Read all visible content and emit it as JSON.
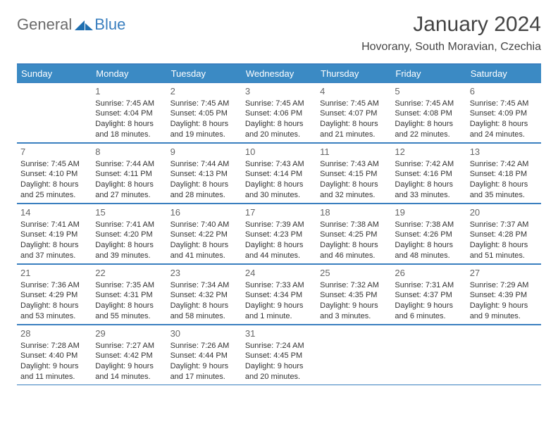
{
  "logo": {
    "text1": "General",
    "text2": "Blue"
  },
  "title": "January 2024",
  "location": "Hovorany, South Moravian, Czechia",
  "colors": {
    "header_bg": "#3b8ac4",
    "header_text": "#ffffff",
    "border": "#3a7fbf",
    "logo_blue": "#3a7fbf",
    "logo_grey": "#6b6b6b",
    "body_text": "#333333"
  },
  "dayHeaders": [
    "Sunday",
    "Monday",
    "Tuesday",
    "Wednesday",
    "Thursday",
    "Friday",
    "Saturday"
  ],
  "weeks": [
    [
      {
        "blank": true
      },
      {
        "day": "1",
        "sunrise": "Sunrise: 7:45 AM",
        "sunset": "Sunset: 4:04 PM",
        "daylight1": "Daylight: 8 hours",
        "daylight2": "and 18 minutes."
      },
      {
        "day": "2",
        "sunrise": "Sunrise: 7:45 AM",
        "sunset": "Sunset: 4:05 PM",
        "daylight1": "Daylight: 8 hours",
        "daylight2": "and 19 minutes."
      },
      {
        "day": "3",
        "sunrise": "Sunrise: 7:45 AM",
        "sunset": "Sunset: 4:06 PM",
        "daylight1": "Daylight: 8 hours",
        "daylight2": "and 20 minutes."
      },
      {
        "day": "4",
        "sunrise": "Sunrise: 7:45 AM",
        "sunset": "Sunset: 4:07 PM",
        "daylight1": "Daylight: 8 hours",
        "daylight2": "and 21 minutes."
      },
      {
        "day": "5",
        "sunrise": "Sunrise: 7:45 AM",
        "sunset": "Sunset: 4:08 PM",
        "daylight1": "Daylight: 8 hours",
        "daylight2": "and 22 minutes."
      },
      {
        "day": "6",
        "sunrise": "Sunrise: 7:45 AM",
        "sunset": "Sunset: 4:09 PM",
        "daylight1": "Daylight: 8 hours",
        "daylight2": "and 24 minutes."
      }
    ],
    [
      {
        "day": "7",
        "sunrise": "Sunrise: 7:45 AM",
        "sunset": "Sunset: 4:10 PM",
        "daylight1": "Daylight: 8 hours",
        "daylight2": "and 25 minutes."
      },
      {
        "day": "8",
        "sunrise": "Sunrise: 7:44 AM",
        "sunset": "Sunset: 4:11 PM",
        "daylight1": "Daylight: 8 hours",
        "daylight2": "and 27 minutes."
      },
      {
        "day": "9",
        "sunrise": "Sunrise: 7:44 AM",
        "sunset": "Sunset: 4:13 PM",
        "daylight1": "Daylight: 8 hours",
        "daylight2": "and 28 minutes."
      },
      {
        "day": "10",
        "sunrise": "Sunrise: 7:43 AM",
        "sunset": "Sunset: 4:14 PM",
        "daylight1": "Daylight: 8 hours",
        "daylight2": "and 30 minutes."
      },
      {
        "day": "11",
        "sunrise": "Sunrise: 7:43 AM",
        "sunset": "Sunset: 4:15 PM",
        "daylight1": "Daylight: 8 hours",
        "daylight2": "and 32 minutes."
      },
      {
        "day": "12",
        "sunrise": "Sunrise: 7:42 AM",
        "sunset": "Sunset: 4:16 PM",
        "daylight1": "Daylight: 8 hours",
        "daylight2": "and 33 minutes."
      },
      {
        "day": "13",
        "sunrise": "Sunrise: 7:42 AM",
        "sunset": "Sunset: 4:18 PM",
        "daylight1": "Daylight: 8 hours",
        "daylight2": "and 35 minutes."
      }
    ],
    [
      {
        "day": "14",
        "sunrise": "Sunrise: 7:41 AM",
        "sunset": "Sunset: 4:19 PM",
        "daylight1": "Daylight: 8 hours",
        "daylight2": "and 37 minutes."
      },
      {
        "day": "15",
        "sunrise": "Sunrise: 7:41 AM",
        "sunset": "Sunset: 4:20 PM",
        "daylight1": "Daylight: 8 hours",
        "daylight2": "and 39 minutes."
      },
      {
        "day": "16",
        "sunrise": "Sunrise: 7:40 AM",
        "sunset": "Sunset: 4:22 PM",
        "daylight1": "Daylight: 8 hours",
        "daylight2": "and 41 minutes."
      },
      {
        "day": "17",
        "sunrise": "Sunrise: 7:39 AM",
        "sunset": "Sunset: 4:23 PM",
        "daylight1": "Daylight: 8 hours",
        "daylight2": "and 44 minutes."
      },
      {
        "day": "18",
        "sunrise": "Sunrise: 7:38 AM",
        "sunset": "Sunset: 4:25 PM",
        "daylight1": "Daylight: 8 hours",
        "daylight2": "and 46 minutes."
      },
      {
        "day": "19",
        "sunrise": "Sunrise: 7:38 AM",
        "sunset": "Sunset: 4:26 PM",
        "daylight1": "Daylight: 8 hours",
        "daylight2": "and 48 minutes."
      },
      {
        "day": "20",
        "sunrise": "Sunrise: 7:37 AM",
        "sunset": "Sunset: 4:28 PM",
        "daylight1": "Daylight: 8 hours",
        "daylight2": "and 51 minutes."
      }
    ],
    [
      {
        "day": "21",
        "sunrise": "Sunrise: 7:36 AM",
        "sunset": "Sunset: 4:29 PM",
        "daylight1": "Daylight: 8 hours",
        "daylight2": "and 53 minutes."
      },
      {
        "day": "22",
        "sunrise": "Sunrise: 7:35 AM",
        "sunset": "Sunset: 4:31 PM",
        "daylight1": "Daylight: 8 hours",
        "daylight2": "and 55 minutes."
      },
      {
        "day": "23",
        "sunrise": "Sunrise: 7:34 AM",
        "sunset": "Sunset: 4:32 PM",
        "daylight1": "Daylight: 8 hours",
        "daylight2": "and 58 minutes."
      },
      {
        "day": "24",
        "sunrise": "Sunrise: 7:33 AM",
        "sunset": "Sunset: 4:34 PM",
        "daylight1": "Daylight: 9 hours",
        "daylight2": "and 1 minute."
      },
      {
        "day": "25",
        "sunrise": "Sunrise: 7:32 AM",
        "sunset": "Sunset: 4:35 PM",
        "daylight1": "Daylight: 9 hours",
        "daylight2": "and 3 minutes."
      },
      {
        "day": "26",
        "sunrise": "Sunrise: 7:31 AM",
        "sunset": "Sunset: 4:37 PM",
        "daylight1": "Daylight: 9 hours",
        "daylight2": "and 6 minutes."
      },
      {
        "day": "27",
        "sunrise": "Sunrise: 7:29 AM",
        "sunset": "Sunset: 4:39 PM",
        "daylight1": "Daylight: 9 hours",
        "daylight2": "and 9 minutes."
      }
    ],
    [
      {
        "day": "28",
        "sunrise": "Sunrise: 7:28 AM",
        "sunset": "Sunset: 4:40 PM",
        "daylight1": "Daylight: 9 hours",
        "daylight2": "and 11 minutes."
      },
      {
        "day": "29",
        "sunrise": "Sunrise: 7:27 AM",
        "sunset": "Sunset: 4:42 PM",
        "daylight1": "Daylight: 9 hours",
        "daylight2": "and 14 minutes."
      },
      {
        "day": "30",
        "sunrise": "Sunrise: 7:26 AM",
        "sunset": "Sunset: 4:44 PM",
        "daylight1": "Daylight: 9 hours",
        "daylight2": "and 17 minutes."
      },
      {
        "day": "31",
        "sunrise": "Sunrise: 7:24 AM",
        "sunset": "Sunset: 4:45 PM",
        "daylight1": "Daylight: 9 hours",
        "daylight2": "and 20 minutes."
      },
      {
        "blank": true
      },
      {
        "blank": true
      },
      {
        "blank": true
      }
    ]
  ]
}
